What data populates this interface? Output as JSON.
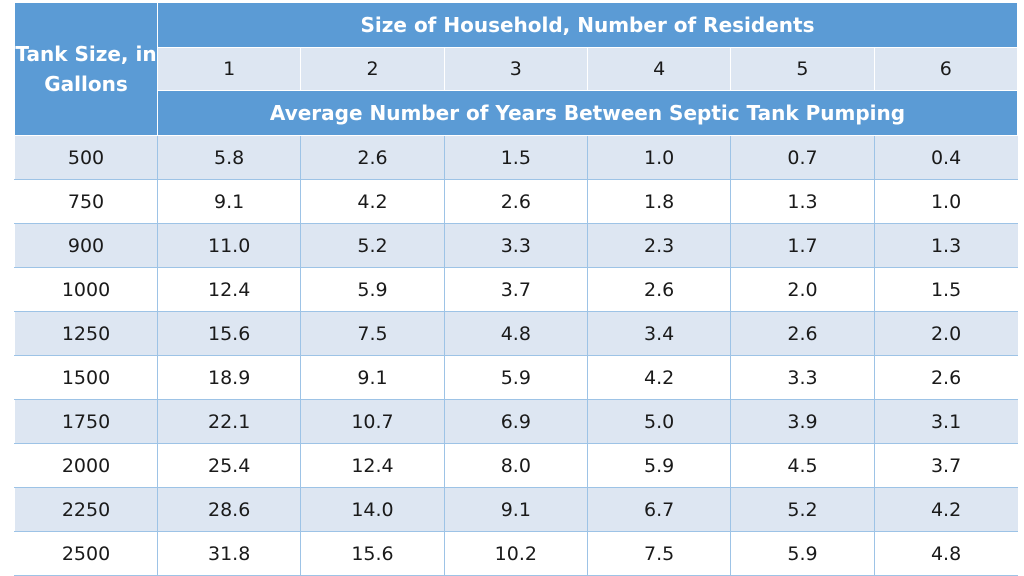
{
  "table": {
    "stub_header": "Tank Size, in Gallons",
    "group_header": "Size of Household, Number of Residents",
    "sub_header": "Average Number of Years Between Septic Tank Pumping",
    "columns": [
      "1",
      "2",
      "3",
      "4",
      "5",
      "6"
    ],
    "rows": [
      {
        "tank": "500",
        "values": [
          "5.8",
          "2.6",
          "1.5",
          "1.0",
          "0.7",
          "0.4"
        ]
      },
      {
        "tank": "750",
        "values": [
          "9.1",
          "4.2",
          "2.6",
          "1.8",
          "1.3",
          "1.0"
        ]
      },
      {
        "tank": "900",
        "values": [
          "11.0",
          "5.2",
          "3.3",
          "2.3",
          "1.7",
          "1.3"
        ]
      },
      {
        "tank": "1000",
        "values": [
          "12.4",
          "5.9",
          "3.7",
          "2.6",
          "2.0",
          "1.5"
        ]
      },
      {
        "tank": "1250",
        "values": [
          "15.6",
          "7.5",
          "4.8",
          "3.4",
          "2.6",
          "2.0"
        ]
      },
      {
        "tank": "1500",
        "values": [
          "18.9",
          "9.1",
          "5.9",
          "4.2",
          "3.3",
          "2.6"
        ]
      },
      {
        "tank": "1750",
        "values": [
          "22.1",
          "10.7",
          "6.9",
          "5.0",
          "3.9",
          "3.1"
        ]
      },
      {
        "tank": "2000",
        "values": [
          "25.4",
          "12.4",
          "8.0",
          "5.9",
          "4.5",
          "3.7"
        ]
      },
      {
        "tank": "2250",
        "values": [
          "28.6",
          "14.0",
          "9.1",
          "6.7",
          "5.2",
          "4.2"
        ]
      },
      {
        "tank": "2500",
        "values": [
          "31.8",
          "15.6",
          "10.2",
          "7.5",
          "5.9",
          "4.8"
        ]
      }
    ]
  },
  "colors": {
    "header_blue": "#5b9bd5",
    "band_light": "#dde6f2",
    "row_white": "#ffffff",
    "grid_line": "#9dc3e6"
  },
  "chart_data": {
    "type": "table",
    "title": "",
    "row_header": "Tank Size, in Gallons",
    "column_group_header": "Size of Household, Number of Residents",
    "value_header": "Average Number of Years Between Septic Tank Pumping",
    "columns": [
      1,
      2,
      3,
      4,
      5,
      6
    ],
    "row_labels": [
      500,
      750,
      900,
      1000,
      1250,
      1500,
      1750,
      2000,
      2250,
      2500
    ],
    "values": [
      [
        5.8,
        2.6,
        1.5,
        1.0,
        0.7,
        0.4
      ],
      [
        9.1,
        4.2,
        2.6,
        1.8,
        1.3,
        1.0
      ],
      [
        11.0,
        5.2,
        3.3,
        2.3,
        1.7,
        1.3
      ],
      [
        12.4,
        5.9,
        3.7,
        2.6,
        2.0,
        1.5
      ],
      [
        15.6,
        7.5,
        4.8,
        3.4,
        2.6,
        2.0
      ],
      [
        18.9,
        9.1,
        5.9,
        4.2,
        3.3,
        2.6
      ],
      [
        22.1,
        10.7,
        6.9,
        5.0,
        3.9,
        3.1
      ],
      [
        25.4,
        12.4,
        8.0,
        5.9,
        4.5,
        3.7
      ],
      [
        28.6,
        14.0,
        9.1,
        6.7,
        5.2,
        4.2
      ],
      [
        31.8,
        15.6,
        10.2,
        7.5,
        5.9,
        4.8
      ]
    ]
  }
}
